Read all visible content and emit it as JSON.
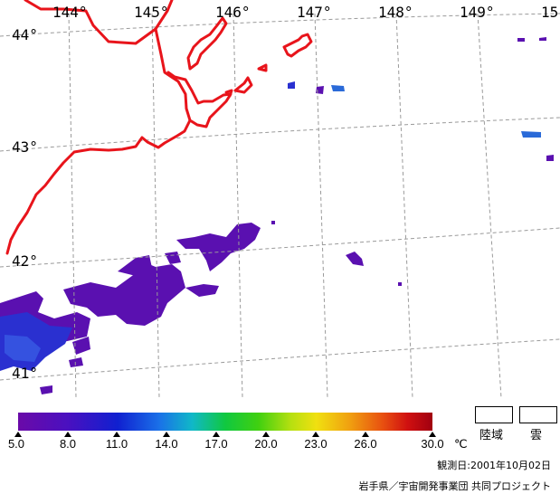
{
  "map": {
    "lon_labels": [
      "144°",
      "145°",
      "146°",
      "147°",
      "148°",
      "149°",
      "15"
    ],
    "lat_labels": [
      "44°",
      "43°",
      "42°",
      "41°"
    ]
  },
  "colors": {
    "coast": "#e8141b",
    "grid": "#9a9a9a",
    "sst_low": "#5a10b0",
    "sst_mid": "#2030c8"
  },
  "colorbar": {
    "ticks": [
      "5.0",
      "8.0",
      "11.0",
      "14.0",
      "17.0",
      "20.0",
      "23.0",
      "26.0",
      "30.0"
    ],
    "unit": "℃"
  },
  "legend": {
    "land": "陸域",
    "cloud": "雲"
  },
  "footer": {
    "date": "観測日:2001年10月02日",
    "credit": "岩手県／宇宙開発事業団 共同プロジェクト"
  }
}
